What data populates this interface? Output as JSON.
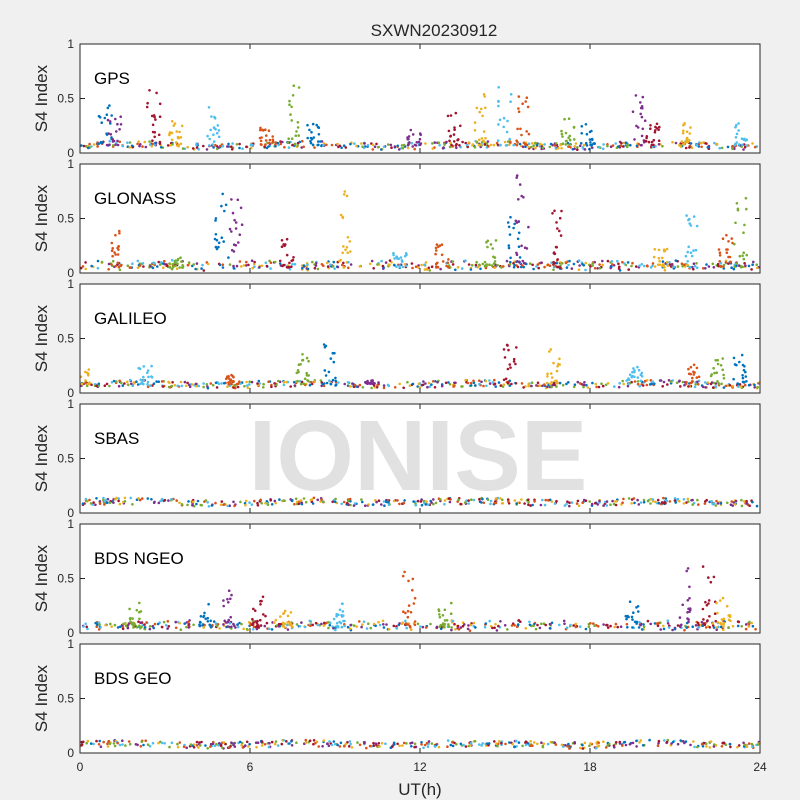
{
  "title": "SXWN20230912",
  "watermark": "IONISE",
  "xlabel": "UT(h)",
  "xticks": [
    "0",
    "6",
    "12",
    "18",
    "24"
  ],
  "chart_data": {
    "type": "scatter",
    "title": "SXWN20230912",
    "xlabel": "UT(h)",
    "ylabel": "S4 Index",
    "xlim": [
      0,
      24
    ],
    "ylim": [
      0,
      1
    ],
    "xticks": [
      0,
      6,
      12,
      18,
      24
    ],
    "yticks": [
      0,
      0.5,
      1
    ],
    "grid": false,
    "colors": [
      "#0072BD",
      "#D95319",
      "#EDB120",
      "#7E2F8E",
      "#77AC30",
      "#4DBEEE",
      "#A2142F"
    ],
    "panels": [
      {
        "label": "GPS",
        "baseline": 0.07,
        "spikes": [
          [
            0.9,
            0.46
          ],
          [
            1.2,
            0.35
          ],
          [
            2.6,
            0.6
          ],
          [
            3.4,
            0.3
          ],
          [
            4.7,
            0.45
          ],
          [
            6.6,
            0.25
          ],
          [
            7.5,
            0.65
          ],
          [
            8.2,
            0.3
          ],
          [
            11.8,
            0.22
          ],
          [
            13.2,
            0.38
          ],
          [
            14.1,
            0.58
          ],
          [
            15.0,
            0.65
          ],
          [
            15.6,
            0.52
          ],
          [
            17.2,
            0.33
          ],
          [
            17.9,
            0.3
          ],
          [
            19.7,
            0.6
          ],
          [
            20.2,
            0.3
          ],
          [
            21.4,
            0.3
          ],
          [
            23.3,
            0.32
          ]
        ]
      },
      {
        "label": "GLONASS",
        "baseline": 0.05,
        "spikes": [
          [
            1.3,
            0.4
          ],
          [
            3.4,
            0.18
          ],
          [
            5.0,
            0.75
          ],
          [
            5.5,
            0.68
          ],
          [
            7.3,
            0.35
          ],
          [
            9.3,
            0.78
          ],
          [
            11.3,
            0.2
          ],
          [
            12.8,
            0.28
          ],
          [
            14.5,
            0.3
          ],
          [
            15.3,
            0.55
          ],
          [
            15.6,
            0.95
          ],
          [
            16.9,
            0.6
          ],
          [
            20.5,
            0.25
          ],
          [
            21.6,
            0.57
          ],
          [
            22.8,
            0.35
          ],
          [
            23.3,
            0.72
          ]
        ]
      },
      {
        "label": "GALILEO",
        "baseline": 0.08,
        "spikes": [
          [
            0.1,
            0.3
          ],
          [
            2.3,
            0.25
          ],
          [
            5.4,
            0.22
          ],
          [
            7.9,
            0.38
          ],
          [
            8.8,
            0.5
          ],
          [
            10.3,
            0.12
          ],
          [
            15.2,
            0.45
          ],
          [
            16.7,
            0.48
          ],
          [
            19.6,
            0.25
          ],
          [
            21.6,
            0.28
          ],
          [
            22.5,
            0.32
          ],
          [
            23.3,
            0.38
          ]
        ]
      },
      {
        "label": "SBAS",
        "baseline": 0.1,
        "spikes": []
      },
      {
        "label": "BDS NGEO",
        "baseline": 0.05,
        "spikes": [
          [
            2.0,
            0.28
          ],
          [
            4.4,
            0.3
          ],
          [
            5.3,
            0.4
          ],
          [
            6.3,
            0.35
          ],
          [
            7.3,
            0.25
          ],
          [
            9.1,
            0.28
          ],
          [
            11.6,
            0.6
          ],
          [
            12.9,
            0.28
          ],
          [
            19.5,
            0.3
          ],
          [
            21.3,
            0.6
          ],
          [
            22.2,
            0.65
          ],
          [
            22.7,
            0.45
          ]
        ]
      },
      {
        "label": "BDS GEO",
        "baseline": 0.08,
        "spikes": []
      }
    ]
  }
}
